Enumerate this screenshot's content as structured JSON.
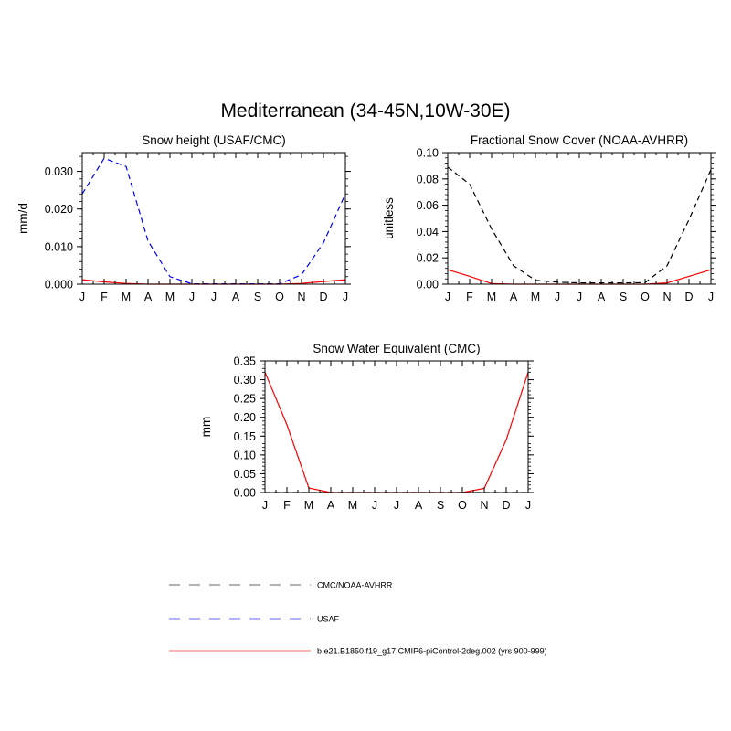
{
  "figure_title": "Mediterranean (34-45N,10W-30E)",
  "month_labels": [
    "J",
    "F",
    "M",
    "A",
    "M",
    "J",
    "J",
    "A",
    "S",
    "O",
    "N",
    "D",
    "J"
  ],
  "legend": [
    {
      "label": "CMC/NOAA-AVHRR",
      "color": "#000000",
      "dash": "dashed"
    },
    {
      "label": "USAF",
      "color": "#0000ff",
      "dash": "dashed"
    },
    {
      "label": "b.e21.B1850.f19_g17.CMIP6-piControl-2deg.002 (yrs 900-999)",
      "color": "#ff0000",
      "dash": "solid"
    }
  ],
  "chart_data": [
    {
      "type": "line",
      "title": "Snow height (USAF/CMC)",
      "ylabel": "mm/d",
      "ylim": [
        0,
        0.035
      ],
      "yticks": [
        0.0,
        0.01,
        0.02,
        0.03
      ],
      "ytick_labels": [
        "0.000",
        "0.010",
        "0.020",
        "0.030"
      ],
      "x": [
        0,
        1,
        2,
        3,
        4,
        5,
        6,
        7,
        8,
        9,
        10,
        11,
        12
      ],
      "series": [
        {
          "name": "USAF",
          "color": "#0000ff",
          "dash": "dashed",
          "values": [
            0.024,
            0.0335,
            0.0313,
            0.0115,
            0.002,
            0.0001,
            0.0001,
            0.0001,
            0.0001,
            0.0001,
            0.0025,
            0.011,
            0.024
          ]
        },
        {
          "name": "b.e21.B1850.f19_g17.CMIP6-piControl-2deg.002 (yrs 900-999)",
          "color": "#ff0000",
          "dash": "solid",
          "values": [
            0.0012,
            0.0006,
            0.0002,
            0.0,
            0.0,
            0.0,
            0.0,
            0.0,
            0.0,
            0.0,
            0.0002,
            0.0007,
            0.0012
          ]
        }
      ]
    },
    {
      "type": "line",
      "title": "Fractional Snow Cover (NOAA-AVHRR)",
      "ylabel": "unitless",
      "ylim": [
        0,
        0.1
      ],
      "yticks": [
        0.0,
        0.02,
        0.04,
        0.06,
        0.08,
        0.1
      ],
      "ytick_labels": [
        "0.00",
        "0.02",
        "0.04",
        "0.06",
        "0.08",
        "0.10"
      ],
      "x": [
        0,
        1,
        2,
        3,
        4,
        5,
        6,
        7,
        8,
        9,
        10,
        11,
        12
      ],
      "series": [
        {
          "name": "CMC/NOAA-AVHRR",
          "color": "#000000",
          "dash": "dashed",
          "values": [
            0.089,
            0.076,
            0.042,
            0.014,
            0.003,
            0.0015,
            0.001,
            0.001,
            0.001,
            0.0012,
            0.014,
            0.049,
            0.087
          ]
        },
        {
          "name": "b.e21.B1850.f19_g17.CMIP6-piControl-2deg.002 (yrs 900-999)",
          "color": "#ff0000",
          "dash": "solid",
          "values": [
            0.011,
            0.006,
            0.0005,
            0.0,
            0.0,
            0.0,
            0.0,
            0.0,
            0.0,
            0.0,
            0.001,
            0.006,
            0.011
          ]
        }
      ]
    },
    {
      "type": "line",
      "title": "Snow Water Equivalent (CMC)",
      "ylabel": "mm",
      "ylim": [
        0,
        0.35
      ],
      "yticks": [
        0.0,
        0.05,
        0.1,
        0.15,
        0.2,
        0.25,
        0.3,
        0.35
      ],
      "ytick_labels": [
        "0.00",
        "0.05",
        "0.10",
        "0.15",
        "0.20",
        "0.25",
        "0.30",
        "0.35"
      ],
      "x": [
        0,
        1,
        2,
        3,
        4,
        5,
        6,
        7,
        8,
        9,
        10,
        11,
        12
      ],
      "series": [
        {
          "name": "CMC/NOAA-AVHRR",
          "color": "#000000",
          "dash": "dashed",
          "values": [
            0,
            0,
            0,
            0,
            0,
            0,
            0,
            0,
            0,
            0,
            0,
            0,
            0
          ]
        },
        {
          "name": "b.e21.B1850.f19_g17.CMIP6-piControl-2deg.002 (yrs 900-999)",
          "color": "#ff0000",
          "dash": "solid",
          "values": [
            0.32,
            0.18,
            0.012,
            0.0,
            0.0,
            0.0,
            0.0,
            0.0,
            0.0,
            0.0,
            0.011,
            0.14,
            0.32
          ]
        }
      ]
    }
  ]
}
